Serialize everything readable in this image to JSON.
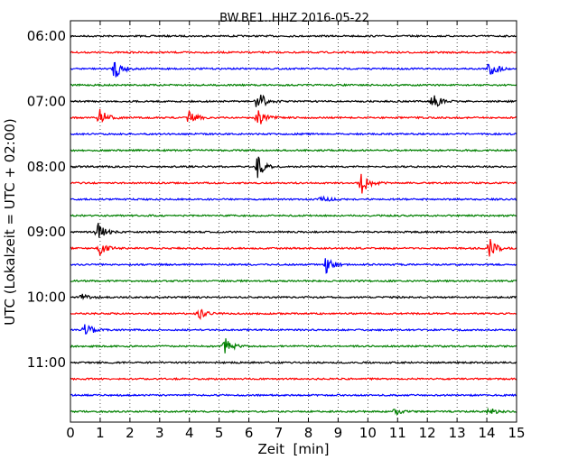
{
  "chart_data": {
    "type": "line",
    "title": "BW.BE1..HHZ 2016-05-22",
    "xlabel": "Zeit  [min]",
    "ylabel": "UTC (Lokalzeit = UTC + 02:00)",
    "xlim": [
      0,
      15
    ],
    "x_ticks": [
      0,
      1,
      2,
      3,
      4,
      5,
      6,
      7,
      8,
      9,
      10,
      11,
      12,
      13,
      14,
      15
    ],
    "y_tick_labels": [
      "06:00",
      "07:00",
      "08:00",
      "09:00",
      "10:00",
      "11:00"
    ],
    "trace_interval_min": 15,
    "grid": "vertical dotted",
    "colors": [
      "#000000",
      "#ff0000",
      "#0000ff",
      "#008000"
    ],
    "traces": [
      {
        "start": "06:00",
        "events": []
      },
      {
        "start": "06:15",
        "events": []
      },
      {
        "start": "06:30",
        "events": [
          {
            "t": 1.5,
            "amp": 1.0
          },
          {
            "t": 14.1,
            "amp": 0.8
          }
        ]
      },
      {
        "start": "06:45",
        "events": []
      },
      {
        "start": "07:00",
        "events": [
          {
            "t": 6.3,
            "amp": 1.0
          },
          {
            "t": 12.2,
            "amp": 0.7
          }
        ]
      },
      {
        "start": "07:15",
        "events": [
          {
            "t": 1.0,
            "amp": 0.8
          },
          {
            "t": 4.0,
            "amp": 0.7
          },
          {
            "t": 6.3,
            "amp": 0.8
          }
        ]
      },
      {
        "start": "07:30",
        "events": []
      },
      {
        "start": "07:45",
        "events": []
      },
      {
        "start": "08:00",
        "events": [
          {
            "t": 6.3,
            "amp": 1.0
          }
        ]
      },
      {
        "start": "08:15",
        "events": [
          {
            "t": 9.8,
            "amp": 1.0
          }
        ]
      },
      {
        "start": "08:30",
        "events": [
          {
            "t": 8.4,
            "amp": 0.4
          }
        ]
      },
      {
        "start": "08:45",
        "events": []
      },
      {
        "start": "09:00",
        "events": [
          {
            "t": 0.9,
            "amp": 0.9
          }
        ]
      },
      {
        "start": "09:15",
        "events": [
          {
            "t": 1.0,
            "amp": 0.6
          },
          {
            "t": 14.1,
            "amp": 0.8
          }
        ]
      },
      {
        "start": "09:30",
        "events": [
          {
            "t": 8.6,
            "amp": 0.7
          }
        ]
      },
      {
        "start": "09:45",
        "events": []
      },
      {
        "start": "10:00",
        "events": [
          {
            "t": 0.4,
            "amp": 0.3
          }
        ]
      },
      {
        "start": "10:15",
        "events": [
          {
            "t": 4.3,
            "amp": 0.6
          }
        ]
      },
      {
        "start": "10:30",
        "events": [
          {
            "t": 0.5,
            "amp": 0.7
          }
        ]
      },
      {
        "start": "10:45",
        "events": [
          {
            "t": 5.2,
            "amp": 0.7
          }
        ]
      },
      {
        "start": "11:00",
        "events": []
      },
      {
        "start": "11:15",
        "events": []
      },
      {
        "start": "11:30",
        "events": []
      },
      {
        "start": "11:45",
        "events": [
          {
            "t": 10.9,
            "amp": 0.3
          },
          {
            "t": 14.1,
            "amp": 0.3
          }
        ]
      }
    ]
  }
}
